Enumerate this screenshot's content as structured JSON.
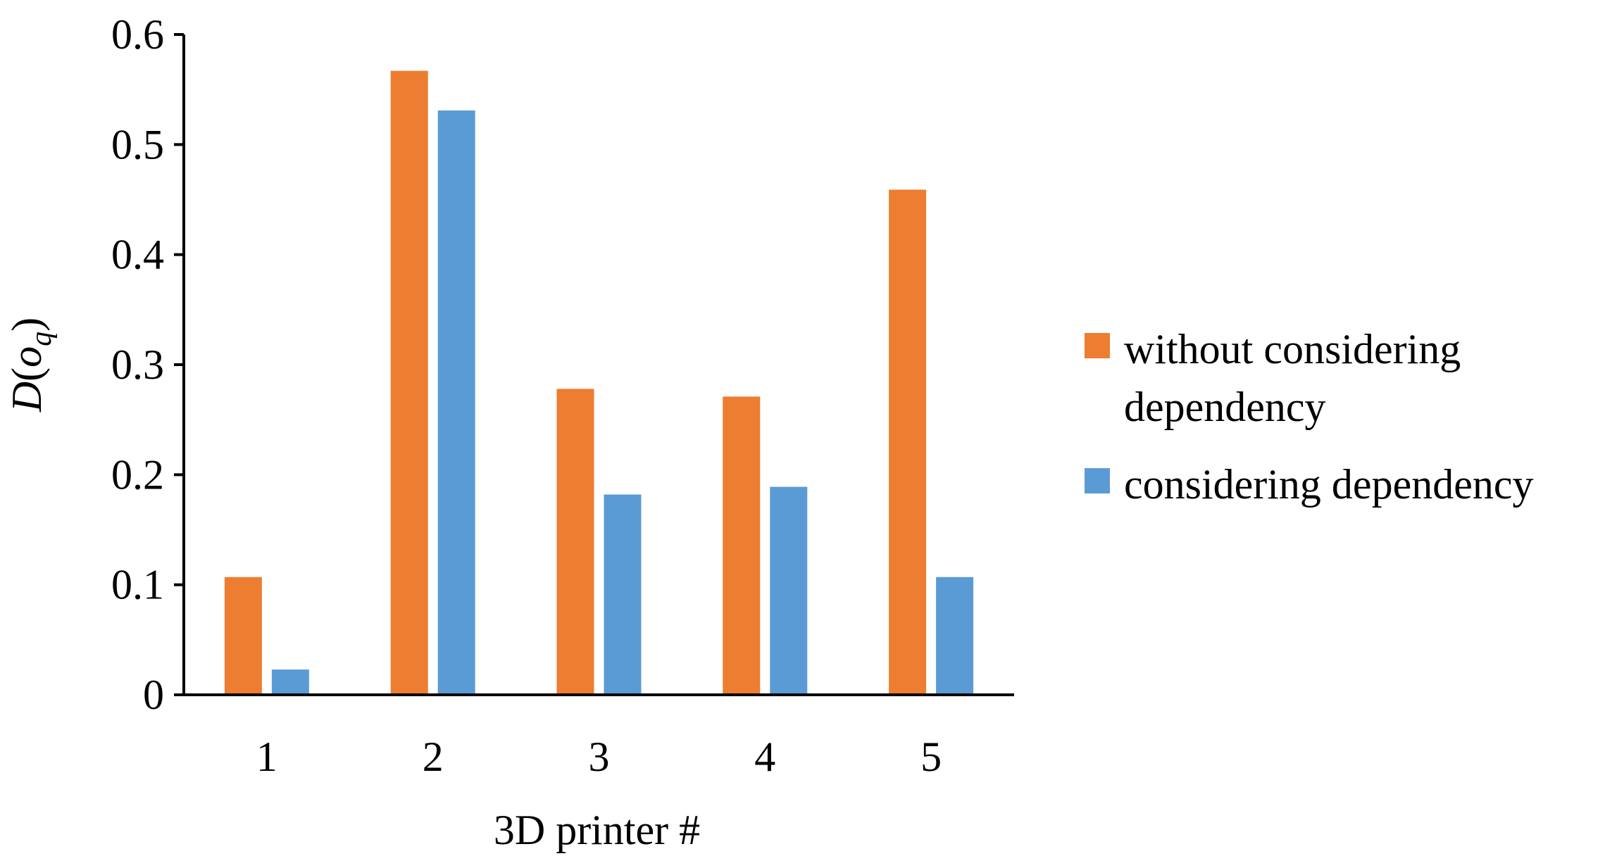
{
  "chart_data": {
    "type": "bar",
    "categories": [
      "1",
      "2",
      "3",
      "4",
      "5"
    ],
    "series": [
      {
        "name": "without considering dependency",
        "name_lines": [
          "without considering",
          "dependency"
        ],
        "color": "#ED7D31",
        "values": [
          0.107,
          0.567,
          0.278,
          0.271,
          0.459
        ]
      },
      {
        "name": "considering dependency",
        "name_lines": [
          "considering dependency"
        ],
        "color": "#5B9BD5",
        "values": [
          0.023,
          0.531,
          0.182,
          0.189,
          0.107
        ]
      }
    ],
    "xlabel": "3D printer #",
    "ylabel": {
      "main": "D",
      "paren_open": "(",
      "var": "o",
      "sub": "q",
      "paren_close": ")"
    },
    "ylim": [
      0,
      0.6
    ],
    "yticks": [
      "0",
      "0.1",
      "0.2",
      "0.3",
      "0.4",
      "0.5",
      "0.6"
    ],
    "grid": false,
    "legend_position": "right"
  }
}
